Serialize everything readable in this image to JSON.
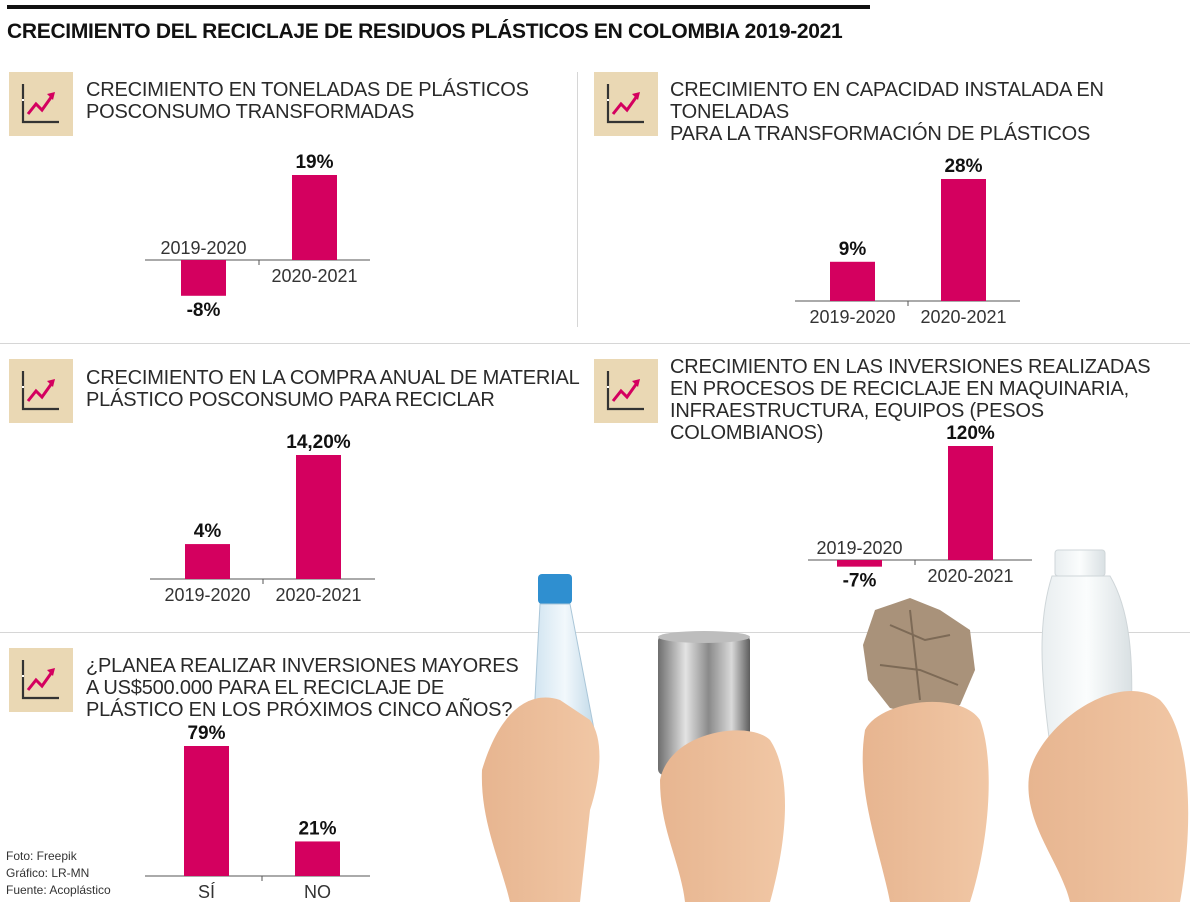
{
  "header": {
    "title": "CRECIMIENTO DEL RECICLAJE DE RESIDUOS PLÁSTICOS EN COLOMBIA 2019-2021"
  },
  "colors": {
    "bar": "#d4005f",
    "icon_bg": "#ead8b4",
    "icon_arrow": "#d4005f"
  },
  "icon_name": "trend-up-chart-icon",
  "chart_data": [
    {
      "type": "bar",
      "title_lines": [
        "CRECIMIENTO EN TONELADAS DE PLÁSTICOS",
        "POSCONSUMO TRANSFORMADAS"
      ],
      "categories": [
        "2019-2020",
        "2020-2021"
      ],
      "values": [
        -8,
        19
      ],
      "labels": [
        "-8%",
        "19%"
      ]
    },
    {
      "type": "bar",
      "title_lines": [
        "CRECIMIENTO EN CAPACIDAD INSTALADA EN TONELADAS",
        "PARA LA TRANSFORMACIÓN DE PLÁSTICOS"
      ],
      "categories": [
        "2019-2020",
        "2020-2021"
      ],
      "values": [
        9,
        28
      ],
      "labels": [
        "9%",
        "28%"
      ]
    },
    {
      "type": "bar",
      "title_lines": [
        "CRECIMIENTO EN LA COMPRA ANUAL DE MATERIAL",
        "PLÁSTICO POSCONSUMO PARA RECICLAR"
      ],
      "categories": [
        "2019-2020",
        "2020-2021"
      ],
      "values": [
        4,
        14.2
      ],
      "labels": [
        "4%",
        "14,20%"
      ]
    },
    {
      "type": "bar",
      "title_lines": [
        "CRECIMIENTO EN LAS INVERSIONES REALIZADAS",
        "EN PROCESOS DE RECICLAJE EN MAQUINARIA,",
        "INFRAESTRUCTURA, EQUIPOS (PESOS COLOMBIANOS)"
      ],
      "categories": [
        "2019-2020",
        "2020-2021"
      ],
      "values": [
        -7,
        120
      ],
      "labels": [
        "-7%",
        "120%"
      ]
    },
    {
      "type": "bar",
      "title_lines": [
        "¿PLANEA REALIZAR INVERSIONES MAYORES",
        "A US$500.000 PARA EL RECICLAJE DE",
        "PLÁSTICO EN LOS PRÓXIMOS CINCO AÑOS?"
      ],
      "categories": [
        "SÍ",
        "NO"
      ],
      "values": [
        79,
        21
      ],
      "labels": [
        "79%",
        "21%"
      ]
    }
  ],
  "credits": {
    "photo": "Foto: Freepik",
    "graphic": "Gráfico: LR-MN",
    "source": "Fuente: Acoplástico"
  }
}
